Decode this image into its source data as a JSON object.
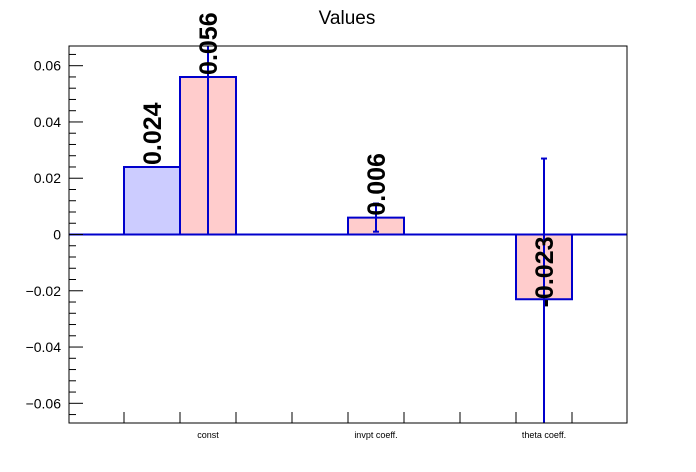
{
  "chart_data": {
    "type": "bar",
    "title": "Values",
    "xlabel": "",
    "ylabel": "",
    "categories": [
      "const",
      "invpt coeff.",
      "theta coeff."
    ],
    "ylim": [
      -0.067,
      0.067
    ],
    "yticks": [
      -0.06,
      -0.04,
      -0.02,
      0,
      0.02,
      0.04,
      0.06
    ],
    "ytick_labels": [
      "−0.06",
      "−0.04",
      "−0.02",
      "0",
      "0.02",
      "0.04",
      "0.06"
    ],
    "grid": false,
    "series": [
      {
        "color": "#ccccff",
        "edge": "#0000cc",
        "values": [
          0.024,
          null,
          null
        ],
        "errors": [
          0,
          null,
          null
        ],
        "labels": [
          "0.024",
          null,
          null
        ]
      },
      {
        "color": "#ffcccc",
        "edge": "#0000cc",
        "values": [
          0.056,
          0.006,
          -0.023
        ],
        "errors": [
          0.056,
          0.005,
          0.05
        ],
        "labels": [
          "0.056",
          "0.006",
          "-0.023"
        ]
      }
    ]
  }
}
